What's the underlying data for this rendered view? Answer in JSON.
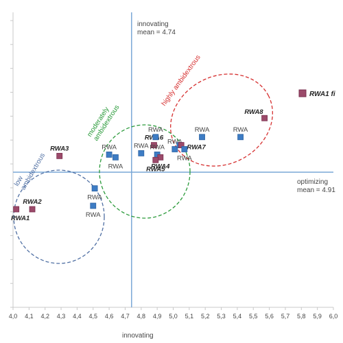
{
  "chart_data": {
    "type": "scatter",
    "xlabel": "innovating",
    "xlim": [
      4.0,
      6.0
    ],
    "x_ticks": [
      "4,0",
      "4,1",
      "4,2",
      "4,3",
      "4,4",
      "4,5",
      "4,6",
      "4,7",
      "4,8",
      "4,9",
      "5,0",
      "5,1",
      "5,2",
      "5,3",
      "5,4",
      "5,5",
      "5,6",
      "5,7",
      "5,8",
      "5,9",
      "6,0"
    ],
    "y_tick_count": 12,
    "grid": false,
    "reference_lines": {
      "vertical": {
        "x": 4.74,
        "label_line1": "innovating",
        "label_line2": "mean = 4.74"
      },
      "horizontal": {
        "label_line1": "optimizing",
        "label_line2": "mean = 4.91"
      }
    },
    "points": [
      {
        "id": "p1",
        "x": 4.02,
        "y_rel": 0.0,
        "label": "RWA1",
        "style": "highlight",
        "label_pos": "below-left"
      },
      {
        "id": "p2",
        "x": 4.12,
        "y_rel": 0.0,
        "label": "RWA2",
        "style": "highlight",
        "label_pos": "above"
      },
      {
        "id": "p3",
        "x": 4.29,
        "y_rel": 0.12,
        "label": "RWA3",
        "style": "highlight",
        "label_pos": "above"
      },
      {
        "id": "p4",
        "x": 4.5,
        "y_rel": 0.0,
        "label": "RWA",
        "style": "plain",
        "label_pos": "below"
      },
      {
        "id": "p5",
        "x": 4.51,
        "y_rel": -0.12,
        "label": "RWA",
        "style": "plain",
        "label_pos": "below"
      },
      {
        "id": "p6",
        "x": 4.6,
        "y_rel": 0.13,
        "label": "RWA",
        "style": "plain",
        "label_pos": "above"
      },
      {
        "id": "p7",
        "x": 4.64,
        "y_rel": 0.11,
        "label": "RWA",
        "style": "plain",
        "label_pos": "below"
      },
      {
        "id": "p8",
        "x": 4.8,
        "y_rel": 0.14,
        "label": "RWA",
        "style": "plain",
        "label_pos": "above"
      },
      {
        "id": "p9",
        "x": 4.88,
        "y_rel": 0.2,
        "label": "RWA6",
        "style": "highlight",
        "label_pos": "above"
      },
      {
        "id": "p10",
        "x": 4.89,
        "y_rel": 0.26,
        "label": "RWA",
        "style": "plain",
        "label_pos": "above"
      },
      {
        "id": "p11",
        "x": 4.9,
        "y_rel": 0.13,
        "label": "RWA",
        "style": "plain",
        "label_pos": "above"
      },
      {
        "id": "p12",
        "x": 4.92,
        "y_rel": 0.11,
        "label": "RWA4",
        "style": "highlight",
        "label_pos": "below"
      },
      {
        "id": "p13",
        "x": 4.89,
        "y_rel": 0.09,
        "label": "RWA5",
        "style": "highlight",
        "label_pos": "below"
      },
      {
        "id": "p14",
        "x": 5.01,
        "y_rel": 0.17,
        "label": "RWA",
        "style": "plain",
        "label_pos": "above"
      },
      {
        "id": "p15",
        "x": 5.04,
        "y_rel": 0.2,
        "label": "",
        "style": "plain",
        "label_pos": "none"
      },
      {
        "id": "p16",
        "x": 5.05,
        "y_rel": 0.2,
        "label": "RWA7",
        "style": "highlight",
        "label_pos": "below-right"
      },
      {
        "id": "p17",
        "x": 5.07,
        "y_rel": 0.17,
        "label": "RWA",
        "style": "plain",
        "label_pos": "below"
      },
      {
        "id": "p18",
        "x": 5.18,
        "y_rel": 0.26,
        "label": "RWA",
        "style": "plain",
        "label_pos": "above"
      },
      {
        "id": "p19",
        "x": 5.42,
        "y_rel": 0.26,
        "label": "RWA",
        "style": "plain",
        "label_pos": "above"
      },
      {
        "id": "p20",
        "x": 5.57,
        "y_rel": 0.4,
        "label": "RWA8",
        "style": "highlight",
        "label_pos": "above-left"
      }
    ],
    "legend": {
      "label": "RWA1 fi",
      "style": "highlight",
      "placement": "top-right"
    },
    "annotations": [
      {
        "text": "low ambidextrous",
        "color": "#4f6fa3"
      },
      {
        "text": "moderately ambidextrous",
        "color": "#2a9a3a"
      },
      {
        "text": "highly ambidextrous",
        "color": "#d63030"
      }
    ],
    "colors": {
      "plain_marker": "#3d7cc4",
      "highlight_marker_fill": "#9b4a6a",
      "highlight_marker_stroke": "#7a2f4e",
      "axis": "#c8c8c8",
      "reference_line": "#7aa7d6",
      "text": "#444444",
      "low_group": "#4f6fa3",
      "moderate_group": "#2a9a3a",
      "high_group": "#d63030"
    }
  }
}
